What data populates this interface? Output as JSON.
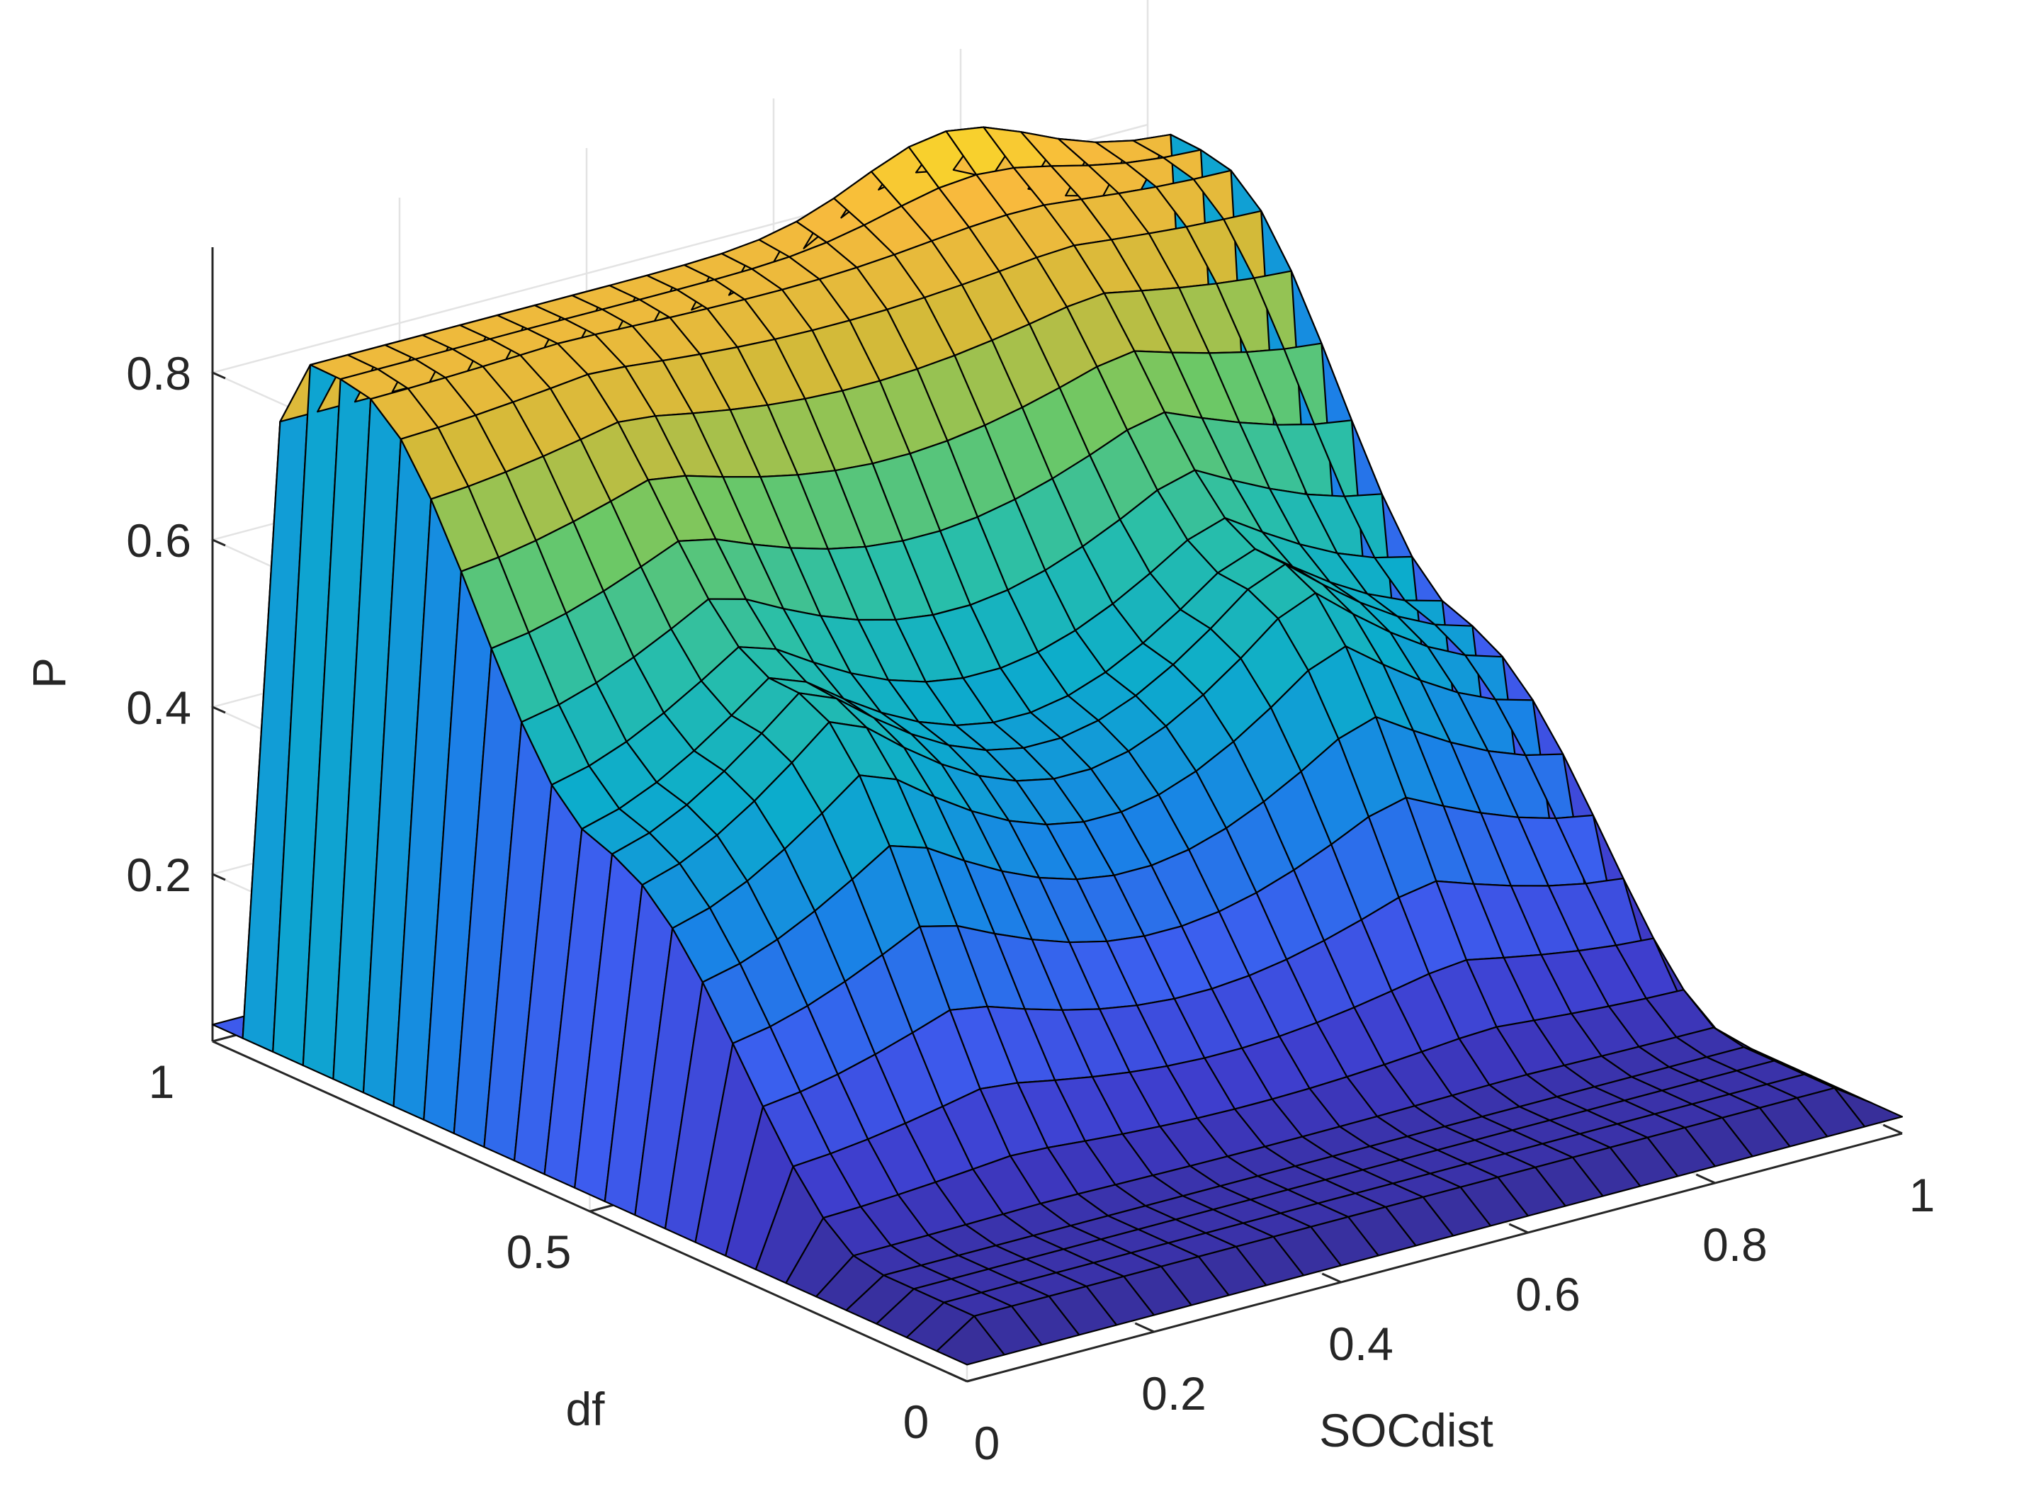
{
  "chart_data": {
    "type": "surface",
    "title": "",
    "xlabel": "SOCdist",
    "ylabel": "df",
    "zlabel": "P",
    "xlim": [
      0,
      1
    ],
    "ylim": [
      0,
      1
    ],
    "zlim": [
      0,
      0.95
    ],
    "x_ticks": [
      0,
      0.2,
      0.4,
      0.6,
      0.8,
      1
    ],
    "x_tick_labels": [
      "0",
      "0.2",
      "0.4",
      "0.6",
      "0.8",
      "1"
    ],
    "y_ticks": [
      0,
      0.5,
      1
    ],
    "y_tick_labels": [
      "0",
      "0.5",
      "1"
    ],
    "z_ticks": [
      0.2,
      0.4,
      0.6,
      0.8
    ],
    "z_tick_labels": [
      "0.2",
      "0.4",
      "0.6",
      "0.8"
    ],
    "grid": true,
    "colormap": "parula",
    "grid_points": 26,
    "x": [
      0,
      0.04,
      0.08,
      0.12,
      0.16,
      0.2,
      0.24,
      0.28,
      0.32,
      0.36,
      0.4,
      0.44,
      0.48,
      0.52,
      0.56,
      0.6,
      0.64,
      0.68,
      0.72,
      0.76,
      0.8,
      0.84,
      0.88,
      0.92,
      0.96,
      1
    ],
    "y": [
      0,
      0.04,
      0.08,
      0.12,
      0.16,
      0.2,
      0.24,
      0.28,
      0.32,
      0.36,
      0.4,
      0.44,
      0.48,
      0.52,
      0.56,
      0.6,
      0.64,
      0.68,
      0.72,
      0.76,
      0.8,
      0.84,
      0.88,
      0.92,
      0.96,
      1
    ],
    "surface_values_approx": {
      "corner_x0_y0": 0.02,
      "corner_x1_y0": 0.02,
      "corner_x0_y1": 0.0,
      "corner_x1_y1": 0.02,
      "plateau_df_0.8_1": 0.83,
      "peak_x0.7_y1": 0.95,
      "center_valley_x0.5_y0.5": 0.45,
      "low_edge_df_0": 0.05
    }
  }
}
